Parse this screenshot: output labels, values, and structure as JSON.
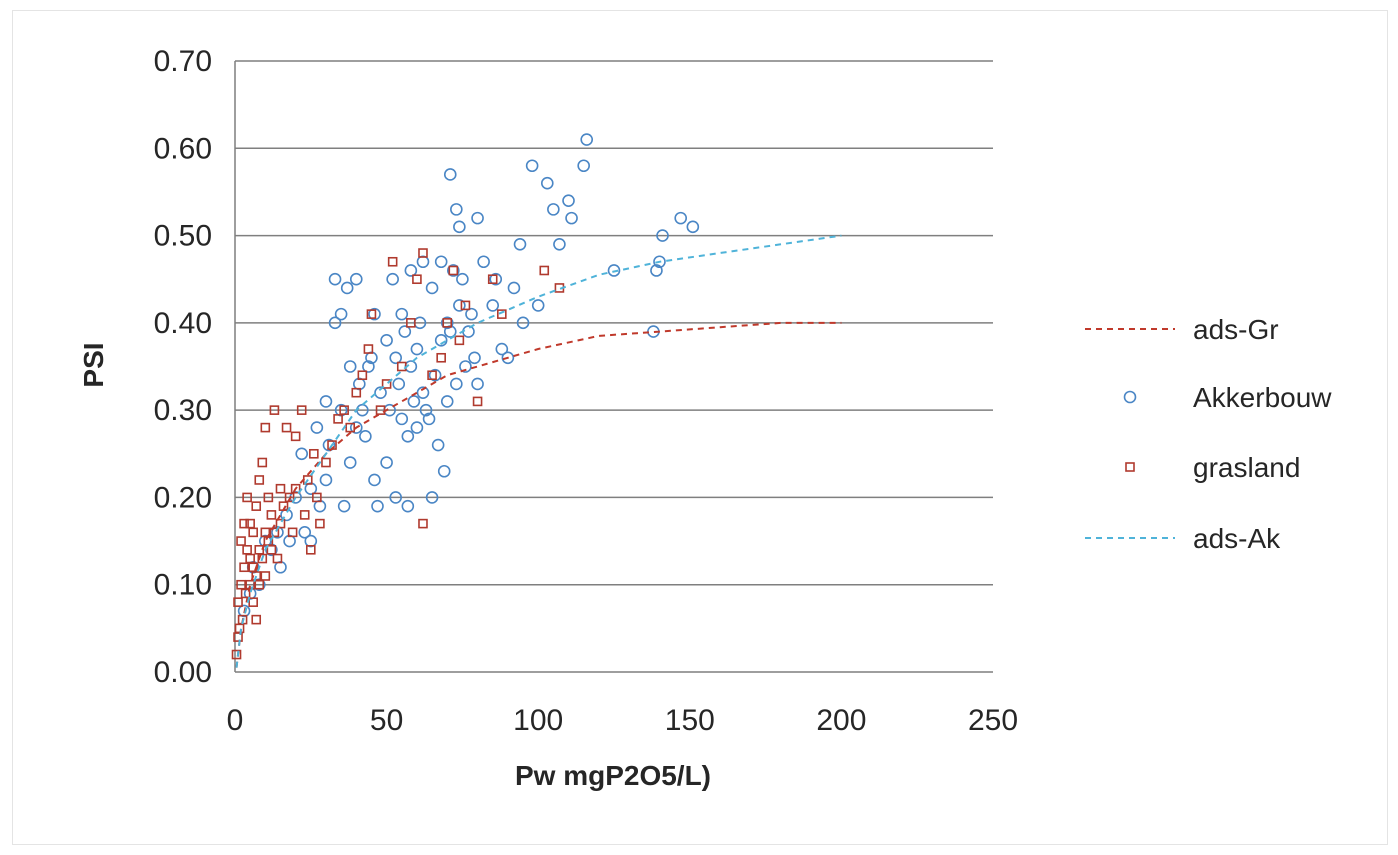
{
  "chart_data": {
    "type": "scatter",
    "xlabel": "Pw mgP2O5/L)",
    "ylabel": "PSI",
    "xlim": [
      0,
      250
    ],
    "ylim": [
      0,
      0.7
    ],
    "x_ticks": [
      "0",
      "50",
      "100",
      "150",
      "200",
      "250"
    ],
    "y_ticks": [
      "0.00",
      "0.10",
      "0.20",
      "0.30",
      "0.40",
      "0.50",
      "0.60",
      "0.70"
    ],
    "grid": "horizontal",
    "legend_position": "right",
    "colors": {
      "ads_gr": "#c0392b",
      "akkerbouw": "#4a86c5",
      "grasland": "#b03a2e",
      "ads_ak": "#4fb3d9",
      "grid": "#7f7f7f"
    },
    "legend": [
      "ads-Gr",
      "Akkerbouw",
      "grasland",
      "ads-Ak"
    ],
    "series": [
      {
        "name": "ads-Gr",
        "kind": "line",
        "style": "dashed",
        "x": [
          0.5,
          2,
          5,
          10,
          15,
          20,
          30,
          40,
          50,
          60,
          70,
          80,
          100,
          120,
          140,
          160,
          180,
          200
        ],
        "y": [
          0.005,
          0.05,
          0.1,
          0.15,
          0.18,
          0.21,
          0.25,
          0.28,
          0.3,
          0.32,
          0.34,
          0.35,
          0.37,
          0.385,
          0.39,
          0.395,
          0.4,
          0.4
        ]
      },
      {
        "name": "Akkerbouw",
        "kind": "points",
        "marker": "circle",
        "x": [
          3,
          5,
          6,
          8,
          10,
          12,
          14,
          15,
          17,
          18,
          20,
          22,
          23,
          25,
          25,
          27,
          28,
          30,
          30,
          31,
          33,
          33,
          35,
          35,
          36,
          37,
          38,
          38,
          40,
          40,
          41,
          42,
          43,
          44,
          45,
          46,
          46,
          47,
          48,
          50,
          50,
          51,
          52,
          53,
          53,
          54,
          55,
          55,
          56,
          57,
          57,
          58,
          58,
          59,
          60,
          60,
          61,
          62,
          62,
          63,
          64,
          65,
          65,
          66,
          67,
          68,
          68,
          69,
          70,
          70,
          71,
          71,
          72,
          73,
          73,
          74,
          74,
          75,
          76,
          77,
          78,
          79,
          80,
          80,
          82,
          85,
          86,
          88,
          90,
          92,
          94,
          95,
          98,
          100,
          103,
          105,
          107,
          110,
          111,
          115,
          116,
          125,
          138,
          139,
          140,
          141,
          147,
          151
        ],
        "y": [
          0.07,
          0.09,
          0.12,
          0.1,
          0.15,
          0.14,
          0.16,
          0.12,
          0.18,
          0.15,
          0.2,
          0.25,
          0.16,
          0.15,
          0.21,
          0.28,
          0.19,
          0.22,
          0.31,
          0.26,
          0.45,
          0.4,
          0.3,
          0.41,
          0.19,
          0.44,
          0.24,
          0.35,
          0.45,
          0.28,
          0.33,
          0.3,
          0.27,
          0.35,
          0.36,
          0.22,
          0.41,
          0.19,
          0.32,
          0.24,
          0.38,
          0.3,
          0.45,
          0.36,
          0.2,
          0.33,
          0.29,
          0.41,
          0.39,
          0.19,
          0.27,
          0.35,
          0.46,
          0.31,
          0.37,
          0.28,
          0.4,
          0.32,
          0.47,
          0.3,
          0.29,
          0.2,
          0.44,
          0.34,
          0.26,
          0.38,
          0.47,
          0.23,
          0.31,
          0.4,
          0.57,
          0.39,
          0.46,
          0.53,
          0.33,
          0.42,
          0.51,
          0.45,
          0.35,
          0.39,
          0.41,
          0.36,
          0.52,
          0.33,
          0.47,
          0.42,
          0.45,
          0.37,
          0.36,
          0.44,
          0.49,
          0.4,
          0.58,
          0.42,
          0.56,
          0.53,
          0.49,
          0.54,
          0.52,
          0.58,
          0.61,
          0.46,
          0.39,
          0.46,
          0.47,
          0.5,
          0.52,
          0.51
        ]
      },
      {
        "name": "grasland",
        "kind": "points",
        "marker": "square",
        "x": [
          0.5,
          1,
          1,
          1.5,
          2,
          2,
          2.5,
          3,
          3,
          3.5,
          4,
          4,
          5,
          5,
          5,
          6,
          6,
          6,
          7,
          7,
          7,
          8,
          8,
          8,
          9,
          9,
          10,
          10,
          10,
          11,
          11,
          12,
          12,
          13,
          13,
          14,
          15,
          15,
          16,
          17,
          18,
          19,
          20,
          20,
          22,
          23,
          24,
          25,
          26,
          27,
          28,
          30,
          32,
          34,
          36,
          38,
          40,
          42,
          44,
          45,
          48,
          50,
          52,
          55,
          58,
          60,
          62,
          62,
          65,
          68,
          70,
          72,
          74,
          76,
          80,
          85,
          88,
          102,
          107
        ],
        "y": [
          0.02,
          0.04,
          0.08,
          0.05,
          0.1,
          0.15,
          0.06,
          0.12,
          0.17,
          0.09,
          0.14,
          0.2,
          0.1,
          0.13,
          0.17,
          0.08,
          0.12,
          0.16,
          0.06,
          0.11,
          0.19,
          0.1,
          0.14,
          0.22,
          0.13,
          0.24,
          0.11,
          0.16,
          0.28,
          0.15,
          0.2,
          0.14,
          0.18,
          0.16,
          0.3,
          0.13,
          0.17,
          0.21,
          0.19,
          0.28,
          0.2,
          0.16,
          0.21,
          0.27,
          0.3,
          0.18,
          0.22,
          0.14,
          0.25,
          0.2,
          0.17,
          0.24,
          0.26,
          0.29,
          0.3,
          0.28,
          0.32,
          0.34,
          0.37,
          0.41,
          0.3,
          0.33,
          0.47,
          0.35,
          0.4,
          0.45,
          0.48,
          0.17,
          0.34,
          0.36,
          0.4,
          0.46,
          0.38,
          0.42,
          0.31,
          0.45,
          0.41,
          0.46,
          0.44
        ]
      },
      {
        "name": "ads-Ak",
        "kind": "line",
        "style": "dashed",
        "x": [
          0.5,
          2,
          5,
          10,
          15,
          20,
          30,
          40,
          50,
          60,
          70,
          80,
          100,
          120,
          140,
          160,
          180,
          200
        ],
        "y": [
          0.005,
          0.05,
          0.09,
          0.14,
          0.17,
          0.2,
          0.25,
          0.3,
          0.33,
          0.36,
          0.38,
          0.4,
          0.43,
          0.455,
          0.47,
          0.48,
          0.49,
          0.5
        ]
      }
    ]
  }
}
